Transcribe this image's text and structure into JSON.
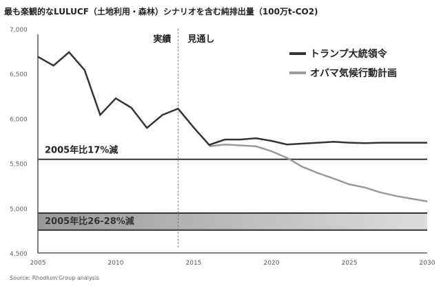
{
  "chart_data": {
    "type": "line",
    "title": "最も楽観的なLULUCF（土地利用・森林）シナリオを含む純排出量（100万t-CO2)",
    "source": "Source: Rhodium Group analysis",
    "xlim": [
      2005,
      2030
    ],
    "ylim": [
      4500,
      7000
    ],
    "x_ticks": [
      "2005",
      "2010",
      "2015",
      "2020",
      "2025",
      "2030"
    ],
    "y_ticks": [
      "4,500",
      "5,000",
      "5,500",
      "6,000",
      "6,500",
      "7,000"
    ],
    "period_labels": {
      "actual": "実績",
      "outlook": "見通し",
      "divider_year": 2014
    },
    "legend_position": "top-right",
    "series": [
      {
        "name": "トランプ大統領令",
        "color": "#333333",
        "x": [
          2005,
          2006,
          2007,
          2008,
          2009,
          2010,
          2011,
          2012,
          2013,
          2014,
          2015,
          2016,
          2017,
          2018,
          2019,
          2020,
          2021,
          2022,
          2023,
          2024,
          2025,
          2026,
          2027,
          2028,
          2029,
          2030
        ],
        "values": [
          6690,
          6590,
          6740,
          6540,
          6040,
          6225,
          6120,
          5895,
          6040,
          6110,
          5900,
          5705,
          5765,
          5765,
          5780,
          5750,
          5710,
          5720,
          5730,
          5740,
          5730,
          5725,
          5730,
          5730,
          5730,
          5730
        ]
      },
      {
        "name": "オバマ気候行動計画",
        "color": "#999999",
        "x": [
          2016,
          2017,
          2018,
          2019,
          2020,
          2021,
          2022,
          2023,
          2024,
          2025,
          2026,
          2027,
          2028,
          2029,
          2030
        ],
        "values": [
          5690,
          5710,
          5700,
          5690,
          5635,
          5560,
          5460,
          5390,
          5330,
          5265,
          5230,
          5175,
          5135,
          5105,
          5075
        ]
      }
    ],
    "targets": [
      {
        "label": "2005年比17%減",
        "value": 5545
      },
      {
        "label": "2005年比26-28%減",
        "range": [
          4755,
          4945
        ]
      }
    ]
  }
}
